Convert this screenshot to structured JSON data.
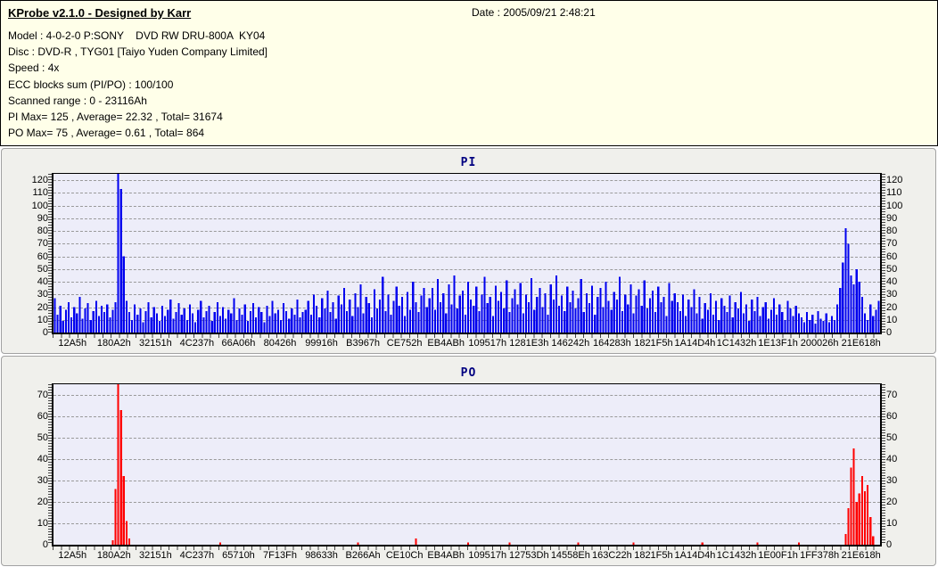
{
  "header": {
    "title": "KProbe v2.1.0 - Designed by Karr",
    "date_label": "Date : 2005/09/21 2:48:21",
    "info_lines": [
      "Model : 4-0-2-0 P:SONY    DVD RW DRU-800A  KY04",
      "Disc : DVD-R , TYG01 [Taiyo Yuden Company Limited]",
      "Speed : 4x",
      "ECC blocks sum (PI/PO) : 100/100",
      "Scanned range : 0 - 23116Ah",
      "PI Max= 125 , Average= 22.32 , Total= 31674",
      "PO Max= 75 , Average= 0.61 , Total= 864"
    ]
  },
  "colors": {
    "header_bg": "#FFFFE9",
    "panel_bg": "#F0F0EC",
    "plot_bg": "#EDEDF9",
    "grid": "#9A9A9A",
    "chart_title": "#000080",
    "pi_bars": "#0000EE",
    "po_bars": "#FF0000"
  },
  "chart_data": [
    {
      "type": "bar",
      "title": "PI",
      "color": "#0000EE",
      "grid": "horizontal-dashed",
      "ylim": [
        0,
        125
      ],
      "yticks": [
        0,
        10,
        20,
        30,
        40,
        50,
        60,
        70,
        80,
        90,
        100,
        110,
        120
      ],
      "stats": {
        "max": 125,
        "average": 22.32,
        "total": 31674
      },
      "x_labels": [
        "12A5h",
        "180A2h",
        "32151h",
        "4C237h",
        "66A06h",
        "80426h",
        "99916h",
        "B3967h",
        "CE752h",
        "EB4ABh",
        "109517h",
        "1281E3h",
        "146242h",
        "164283h",
        "1821F5h",
        "1A14D4h",
        "1C1432h",
        "1E13F1h",
        "200026h",
        "21E618h"
      ],
      "values": [
        27,
        14,
        21,
        9,
        18,
        24,
        12,
        20,
        15,
        28,
        11,
        19,
        23,
        10,
        17,
        25,
        13,
        21,
        16,
        22,
        12,
        18,
        24,
        125,
        113,
        60,
        25,
        16,
        10,
        22,
        14,
        19,
        8,
        17,
        24,
        12,
        20,
        15,
        9,
        21,
        13,
        18,
        26,
        11,
        16,
        23,
        14,
        19,
        10,
        22,
        15,
        8,
        18,
        25,
        12,
        17,
        21,
        9,
        16,
        24,
        13,
        20,
        11,
        18,
        15,
        27,
        10,
        19,
        14,
        22,
        9,
        17,
        23,
        12,
        20,
        16,
        8,
        21,
        13,
        25,
        15,
        18,
        10,
        23,
        17,
        11,
        19,
        14,
        26,
        12,
        16,
        18,
        25,
        14,
        30,
        21,
        12,
        27,
        19,
        33,
        16,
        24,
        11,
        29,
        22,
        35,
        17,
        26,
        13,
        31,
        20,
        38,
        15,
        28,
        23,
        12,
        34,
        19,
        26,
        44,
        17,
        30,
        14,
        25,
        36,
        21,
        28,
        13,
        32,
        18,
        40,
        24,
        16,
        29,
        35,
        20,
        27,
        35,
        18,
        42,
        24,
        31,
        15,
        38,
        22,
        45,
        19,
        29,
        33,
        14,
        40,
        26,
        21,
        36,
        17,
        30,
        44,
        23,
        28,
        13,
        37,
        25,
        32,
        19,
        41,
        16,
        27,
        34,
        22,
        39,
        15,
        30,
        24,
        43,
        18,
        28,
        35,
        20,
        31,
        14,
        38,
        26,
        45,
        21,
        29,
        17,
        36,
        24,
        33,
        19,
        27,
        42,
        16,
        31,
        23,
        37,
        14,
        28,
        35,
        20,
        40,
        25,
        18,
        32,
        26,
        44,
        17,
        30,
        22,
        38,
        15,
        29,
        34,
        21,
        41,
        19,
        27,
        33,
        16,
        36,
        24,
        28,
        13,
        39,
        25,
        31,
        24,
        17,
        30,
        13,
        26,
        20,
        34,
        15,
        28,
        11,
        23,
        18,
        31,
        14,
        25,
        10,
        27,
        21,
        16,
        29,
        12,
        24,
        19,
        32,
        15,
        22,
        9,
        26,
        17,
        28,
        13,
        20,
        24,
        11,
        18,
        27,
        14,
        22,
        16,
        10,
        25,
        19,
        13,
        21,
        15,
        12,
        8,
        16,
        10,
        14,
        7,
        17,
        11,
        9,
        15,
        8,
        13,
        10,
        22,
        35,
        55,
        82,
        70,
        45,
        38,
        50,
        40,
        28,
        15,
        10,
        22,
        13,
        18,
        25
      ]
    },
    {
      "type": "bar",
      "title": "PO",
      "color": "#FF0000",
      "grid": "horizontal-dashed",
      "ylim": [
        0,
        75
      ],
      "yticks": [
        0,
        10,
        20,
        30,
        40,
        50,
        60,
        70
      ],
      "stats": {
        "max": 75,
        "average": 0.61,
        "total": 864
      },
      "x_labels": [
        "12A5h",
        "180A2h",
        "32151h",
        "4C237h",
        "65710h",
        "7F13Fh",
        "98633h",
        "B266Ah",
        "CE10Ch",
        "EB4ABh",
        "109517h",
        "12753Dh",
        "14558Eh",
        "163C22h",
        "1821F5h",
        "1A14D4h",
        "1C1432h",
        "1E00F1h",
        "1FF378h",
        "21E618h"
      ],
      "values": [
        0,
        0,
        0,
        0,
        0,
        0,
        0,
        0,
        0,
        0,
        0,
        0,
        0,
        0,
        0,
        0,
        0,
        0,
        0,
        0,
        0,
        2,
        26,
        75,
        63,
        32,
        11,
        3,
        0,
        0,
        0,
        0,
        0,
        0,
        0,
        0,
        0,
        0,
        0,
        0,
        0,
        0,
        0,
        0,
        0,
        0,
        0,
        0,
        0,
        0,
        0,
        0,
        0,
        0,
        0,
        0,
        0,
        0,
        0,
        0,
        1,
        0,
        0,
        0,
        0,
        0,
        0,
        0,
        0,
        0,
        0,
        0,
        0,
        0,
        0,
        0,
        0,
        0,
        0,
        0,
        0,
        0,
        0,
        0,
        0,
        0,
        0,
        0,
        0,
        0,
        0,
        0,
        0,
        0,
        0,
        0,
        0,
        0,
        0,
        0,
        0,
        0,
        0,
        0,
        0,
        0,
        0,
        0,
        0,
        0,
        1,
        0,
        0,
        0,
        0,
        0,
        0,
        0,
        0,
        0,
        0,
        0,
        0,
        0,
        0,
        0,
        0,
        0,
        0,
        0,
        0,
        3,
        0,
        0,
        0,
        0,
        0,
        0,
        0,
        0,
        0,
        0,
        0,
        0,
        0,
        0,
        0,
        0,
        0,
        0,
        1,
        0,
        0,
        0,
        0,
        0,
        0,
        0,
        0,
        0,
        0,
        0,
        0,
        0,
        0,
        1,
        0,
        0,
        0,
        0,
        0,
        0,
        0,
        0,
        0,
        0,
        0,
        0,
        0,
        0,
        0,
        0,
        0,
        0,
        0,
        0,
        0,
        0,
        0,
        0,
        1,
        0,
        0,
        0,
        0,
        0,
        0,
        0,
        0,
        0,
        0,
        0,
        0,
        0,
        0,
        0,
        0,
        0,
        0,
        0,
        1,
        0,
        0,
        0,
        0,
        0,
        0,
        0,
        0,
        0,
        0,
        0,
        0,
        0,
        0,
        0,
        0,
        0,
        0,
        0,
        0,
        0,
        0,
        0,
        0,
        1,
        0,
        0,
        0,
        0,
        0,
        0,
        0,
        0,
        0,
        0,
        0,
        0,
        0,
        0,
        0,
        0,
        0,
        0,
        0,
        1,
        0,
        0,
        0,
        0,
        0,
        0,
        0,
        0,
        0,
        0,
        0,
        0,
        0,
        0,
        1,
        0,
        0,
        0,
        0,
        0,
        0,
        0,
        0,
        0,
        0,
        0,
        0,
        0,
        0,
        0,
        0,
        5,
        17,
        36,
        45,
        20,
        24,
        32,
        25,
        28,
        13,
        4,
        0,
        0
      ]
    }
  ]
}
